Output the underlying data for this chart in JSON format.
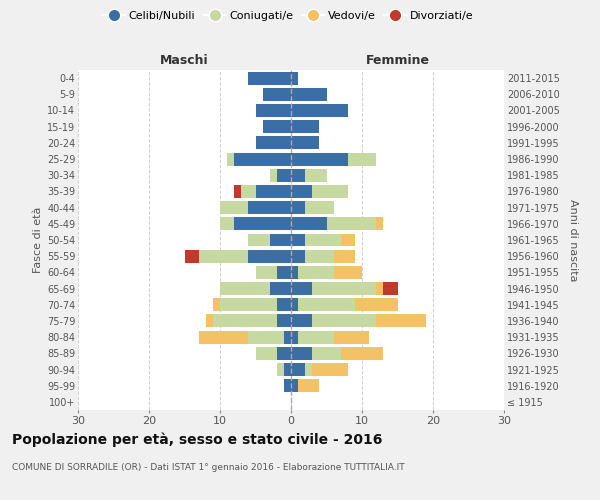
{
  "age_groups": [
    "100+",
    "95-99",
    "90-94",
    "85-89",
    "80-84",
    "75-79",
    "70-74",
    "65-69",
    "60-64",
    "55-59",
    "50-54",
    "45-49",
    "40-44",
    "35-39",
    "30-34",
    "25-29",
    "20-24",
    "15-19",
    "10-14",
    "5-9",
    "0-4"
  ],
  "birth_years": [
    "≤ 1915",
    "1916-1920",
    "1921-1925",
    "1926-1930",
    "1931-1935",
    "1936-1940",
    "1941-1945",
    "1946-1950",
    "1951-1955",
    "1956-1960",
    "1961-1965",
    "1966-1970",
    "1971-1975",
    "1976-1980",
    "1981-1985",
    "1986-1990",
    "1991-1995",
    "1996-2000",
    "2001-2005",
    "2006-2010",
    "2011-2015"
  ],
  "maschi": {
    "celibi": [
      0,
      1,
      1,
      2,
      1,
      2,
      2,
      3,
      2,
      6,
      3,
      8,
      6,
      5,
      2,
      8,
      5,
      4,
      5,
      4,
      6
    ],
    "coniugati": [
      0,
      0,
      1,
      3,
      5,
      9,
      8,
      7,
      3,
      7,
      3,
      2,
      4,
      2,
      1,
      1,
      0,
      0,
      0,
      0,
      0
    ],
    "vedovi": [
      0,
      0,
      0,
      0,
      7,
      1,
      1,
      0,
      0,
      0,
      0,
      0,
      0,
      0,
      0,
      0,
      0,
      0,
      0,
      0,
      0
    ],
    "divorziati": [
      0,
      0,
      0,
      0,
      0,
      0,
      0,
      0,
      0,
      2,
      0,
      0,
      0,
      1,
      0,
      0,
      0,
      0,
      0,
      0,
      0
    ]
  },
  "femmine": {
    "nubili": [
      0,
      1,
      2,
      3,
      1,
      3,
      1,
      3,
      1,
      2,
      2,
      5,
      2,
      3,
      2,
      8,
      4,
      4,
      8,
      5,
      1
    ],
    "coniugate": [
      0,
      0,
      1,
      4,
      5,
      9,
      8,
      9,
      5,
      4,
      5,
      7,
      4,
      5,
      3,
      4,
      0,
      0,
      0,
      0,
      0
    ],
    "vedove": [
      0,
      3,
      5,
      6,
      5,
      7,
      6,
      1,
      4,
      3,
      2,
      1,
      0,
      0,
      0,
      0,
      0,
      0,
      0,
      0,
      0
    ],
    "divorziate": [
      0,
      0,
      0,
      0,
      0,
      0,
      0,
      2,
      0,
      0,
      0,
      0,
      0,
      0,
      0,
      0,
      0,
      0,
      0,
      0,
      0
    ]
  },
  "colors": {
    "celibi_nubili": "#3b6ea5",
    "coniugati": "#c5d9a0",
    "vedovi": "#f5c165",
    "divorziati": "#c0392b"
  },
  "xlim": 30,
  "title": "Popolazione per età, sesso e stato civile - 2016",
  "subtitle": "COMUNE DI SORRADILE (OR) - Dati ISTAT 1° gennaio 2016 - Elaborazione TUTTITALIA.IT",
  "ylabel_left": "Fasce di età",
  "ylabel_right": "Anni di nascita",
  "xlabel_left": "Maschi",
  "xlabel_right": "Femmine",
  "bg_color": "#f0f0f0",
  "plot_bg": "#ffffff",
  "grid_color": "#cccccc"
}
